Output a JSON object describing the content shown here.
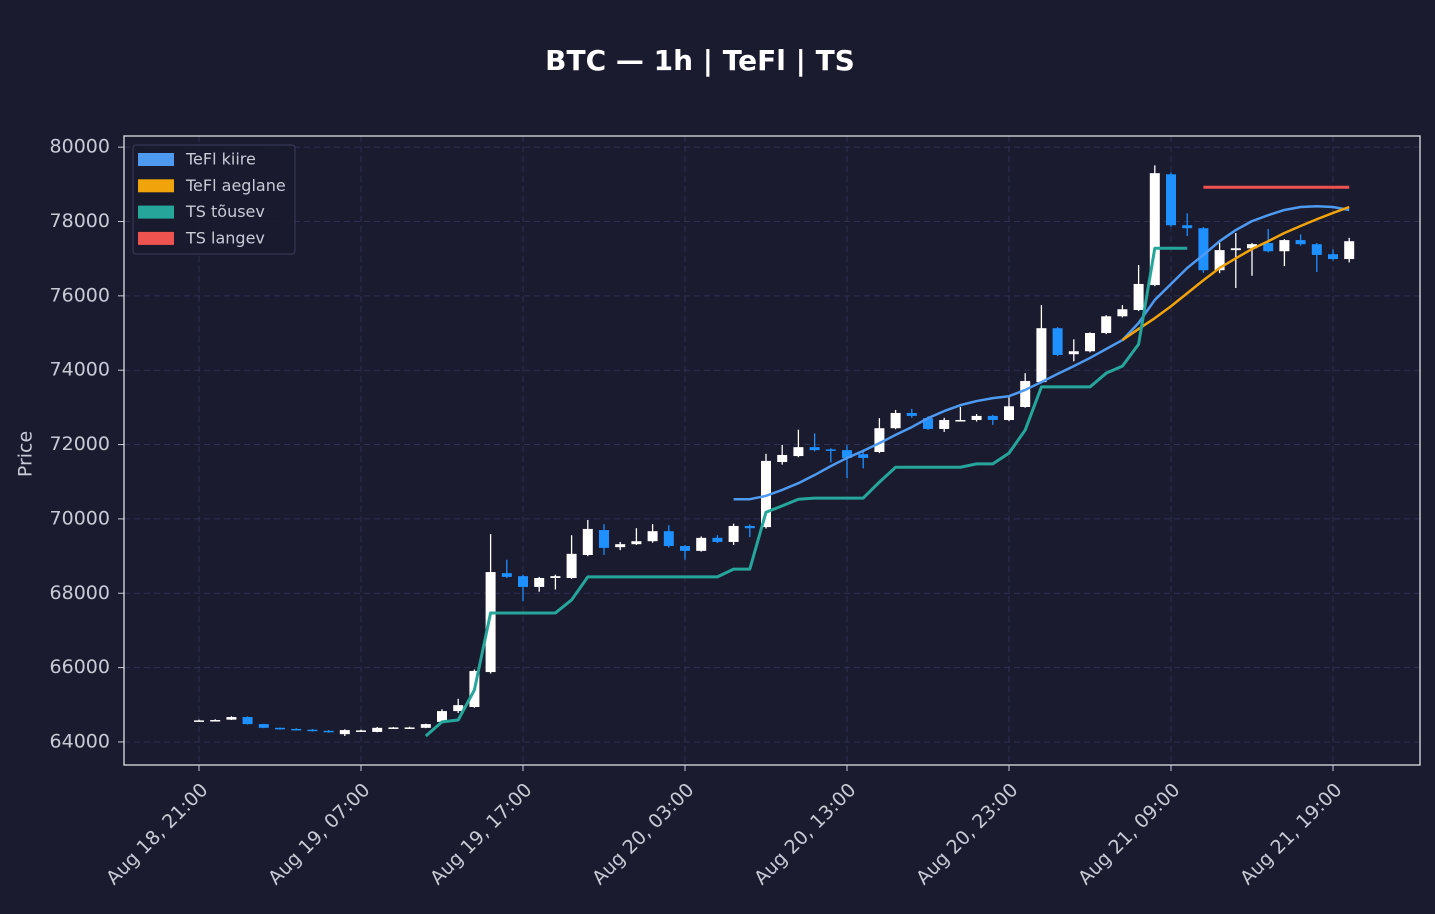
{
  "chart_data": {
    "type": "candlestick",
    "title": "BTC — 1h  |  TeFl  |  TS",
    "y_label": "Price",
    "categories": [
      "Aug 18, 21:00",
      null,
      null,
      null,
      null,
      null,
      null,
      null,
      null,
      null,
      "Aug 19, 07:00",
      null,
      null,
      null,
      null,
      null,
      null,
      null,
      null,
      null,
      "Aug 19, 17:00",
      null,
      null,
      null,
      null,
      null,
      null,
      null,
      null,
      null,
      "Aug 20, 03:00",
      null,
      null,
      null,
      null,
      null,
      null,
      null,
      null,
      null,
      "Aug 20, 13:00",
      null,
      null,
      null,
      null,
      null,
      null,
      null,
      null,
      null,
      "Aug 20, 23:00",
      null,
      null,
      null,
      null,
      null,
      null,
      null,
      null,
      null,
      "Aug 21, 09:00",
      null,
      null,
      null,
      null,
      null,
      null,
      null,
      null,
      null,
      "Aug 21, 19:00",
      null
    ],
    "ohlc": {
      "up_color": "#ffffff",
      "down_color": "#1e90ff",
      "open": [
        64560,
        64580,
        64600,
        64670,
        64480,
        64380,
        64350,
        64330,
        64300,
        64210,
        64290,
        64270,
        64370,
        64380,
        64380,
        64540,
        64830,
        64940,
        65880,
        68540,
        68460,
        68170,
        68410,
        68410,
        69030,
        69700,
        69240,
        69320,
        69400,
        69670,
        69270,
        69140,
        69490,
        69380,
        69810,
        69780,
        71530,
        71690,
        71930,
        71870,
        71850,
        71740,
        71800,
        72440,
        72850,
        72710,
        72420,
        72640,
        72660,
        72770,
        72660,
        73010,
        73680,
        75130,
        74430,
        74510,
        75000,
        75450,
        75620,
        76290,
        79270,
        77900,
        77820,
        76690,
        77230,
        77280,
        77420,
        77200,
        77500,
        77390,
        77120,
        76990
      ],
      "high": [
        64600,
        64610,
        64690,
        64690,
        64490,
        64390,
        64370,
        64350,
        64320,
        64340,
        64330,
        64400,
        64400,
        64410,
        64490,
        64880,
        65160,
        65950,
        69590,
        68900,
        68500,
        68440,
        68500,
        69560,
        69970,
        69860,
        69380,
        69750,
        69860,
        69830,
        69300,
        69530,
        69560,
        69870,
        69850,
        71750,
        71990,
        72400,
        72300,
        71900,
        71980,
        71870,
        72710,
        72930,
        72960,
        72760,
        72720,
        73010,
        72820,
        72800,
        73300,
        73920,
        75750,
        75160,
        74830,
        75020,
        75480,
        75750,
        76830,
        79510,
        79320,
        78220,
        77850,
        77430,
        77690,
        77420,
        77800,
        77530,
        77650,
        77420,
        77250,
        77560
      ],
      "low": [
        64550,
        64570,
        64590,
        64470,
        64370,
        64330,
        64310,
        64280,
        64250,
        64160,
        64270,
        64260,
        64360,
        64370,
        64370,
        64520,
        64780,
        64920,
        65840,
        68410,
        67790,
        68040,
        68100,
        68390,
        69000,
        69030,
        69160,
        69300,
        69360,
        69230,
        68900,
        69120,
        69350,
        69300,
        69510,
        69740,
        71460,
        71660,
        71820,
        71520,
        71100,
        71360,
        71770,
        72410,
        72720,
        72390,
        72340,
        72620,
        72620,
        72530,
        72630,
        72990,
        73650,
        74380,
        74240,
        74480,
        74970,
        75420,
        75590,
        76260,
        77860,
        77610,
        76620,
        76610,
        76210,
        76540,
        77170,
        76800,
        77350,
        76640,
        76950,
        76900
      ],
      "close": [
        64580,
        64590,
        64670,
        64480,
        64380,
        64350,
        64330,
        64300,
        64270,
        64320,
        64310,
        64380,
        64390,
        64390,
        64480,
        64830,
        64990,
        65910,
        68570,
        68440,
        68170,
        68410,
        68460,
        69060,
        69730,
        69220,
        69320,
        69400,
        69670,
        69270,
        69140,
        69490,
        69380,
        69810,
        69750,
        71560,
        71720,
        71930,
        71850,
        71850,
        71640,
        71640,
        72440,
        72850,
        72770,
        72420,
        72660,
        72660,
        72770,
        72660,
        73030,
        73710,
        75130,
        74410,
        74510,
        75000,
        75450,
        75640,
        76320,
        79300,
        77900,
        77820,
        76690,
        77230,
        77280,
        77390,
        77200,
        77500,
        77390,
        77100,
        76990,
        77470
      ]
    },
    "series": [
      {
        "name": "TeFl kiire",
        "color": "#4e9af1",
        "width": 2.5,
        "values": [
          null,
          null,
          null,
          null,
          null,
          null,
          null,
          null,
          null,
          null,
          null,
          null,
          null,
          null,
          null,
          null,
          null,
          null,
          null,
          null,
          null,
          null,
          null,
          null,
          null,
          null,
          null,
          null,
          null,
          null,
          null,
          null,
          null,
          70530,
          70530,
          70620,
          70780,
          70960,
          71180,
          71420,
          71640,
          71830,
          72040,
          72260,
          72470,
          72710,
          72900,
          73060,
          73170,
          73250,
          73300,
          73470,
          73680,
          73900,
          74110,
          74330,
          74570,
          74810,
          75270,
          75890,
          76320,
          76750,
          77100,
          77470,
          77770,
          78010,
          78170,
          78310,
          78390,
          78410,
          78390,
          78310
        ]
      },
      {
        "name": "TeFl aeglane",
        "color": "#f0a30a",
        "width": 2.5,
        "values": [
          null,
          null,
          null,
          null,
          null,
          null,
          null,
          null,
          null,
          null,
          null,
          null,
          null,
          null,
          null,
          null,
          null,
          null,
          null,
          null,
          null,
          null,
          null,
          null,
          null,
          null,
          null,
          null,
          null,
          null,
          null,
          null,
          null,
          null,
          null,
          null,
          null,
          null,
          null,
          null,
          null,
          null,
          null,
          null,
          null,
          null,
          null,
          null,
          null,
          null,
          null,
          null,
          null,
          null,
          null,
          null,
          null,
          74810,
          75110,
          75400,
          75720,
          76070,
          76420,
          76750,
          77010,
          77260,
          77470,
          77690,
          77880,
          78060,
          78230,
          78390
        ]
      },
      {
        "name": "TS tõusev",
        "color": "#26a69a",
        "width": 3,
        "values": [
          null,
          null,
          null,
          null,
          null,
          null,
          null,
          null,
          null,
          null,
          null,
          null,
          null,
          null,
          64160,
          64540,
          64590,
          65400,
          67470,
          67470,
          67470,
          67470,
          67470,
          67820,
          68440,
          68440,
          68440,
          68440,
          68440,
          68440,
          68440,
          68440,
          68440,
          68650,
          68650,
          70180,
          70350,
          70530,
          70560,
          70560,
          70560,
          70560,
          70990,
          71390,
          71390,
          71390,
          71390,
          71390,
          71480,
          71480,
          71770,
          72390,
          73550,
          73550,
          73550,
          73550,
          73920,
          74110,
          74700,
          77280,
          77280,
          77280,
          null,
          null,
          null,
          null,
          null,
          null,
          null,
          null,
          null,
          null
        ]
      },
      {
        "name": "TS langev",
        "color": "#ef5350",
        "width": 3,
        "values": [
          null,
          null,
          null,
          null,
          null,
          null,
          null,
          null,
          null,
          null,
          null,
          null,
          null,
          null,
          null,
          null,
          null,
          null,
          null,
          null,
          null,
          null,
          null,
          null,
          null,
          null,
          null,
          null,
          null,
          null,
          null,
          null,
          null,
          null,
          null,
          null,
          null,
          null,
          null,
          null,
          null,
          null,
          null,
          null,
          null,
          null,
          null,
          null,
          null,
          null,
          null,
          null,
          null,
          null,
          null,
          null,
          null,
          null,
          null,
          null,
          null,
          null,
          78920,
          78920,
          78920,
          78920,
          78920,
          78920,
          78920,
          78920,
          78920,
          78920
        ]
      }
    ],
    "ylim": [
      63380,
      80300
    ],
    "yticks": [
      64000,
      66000,
      68000,
      70000,
      72000,
      74000,
      76000,
      78000,
      80000
    ],
    "grid": true,
    "legend": "upper left"
  }
}
